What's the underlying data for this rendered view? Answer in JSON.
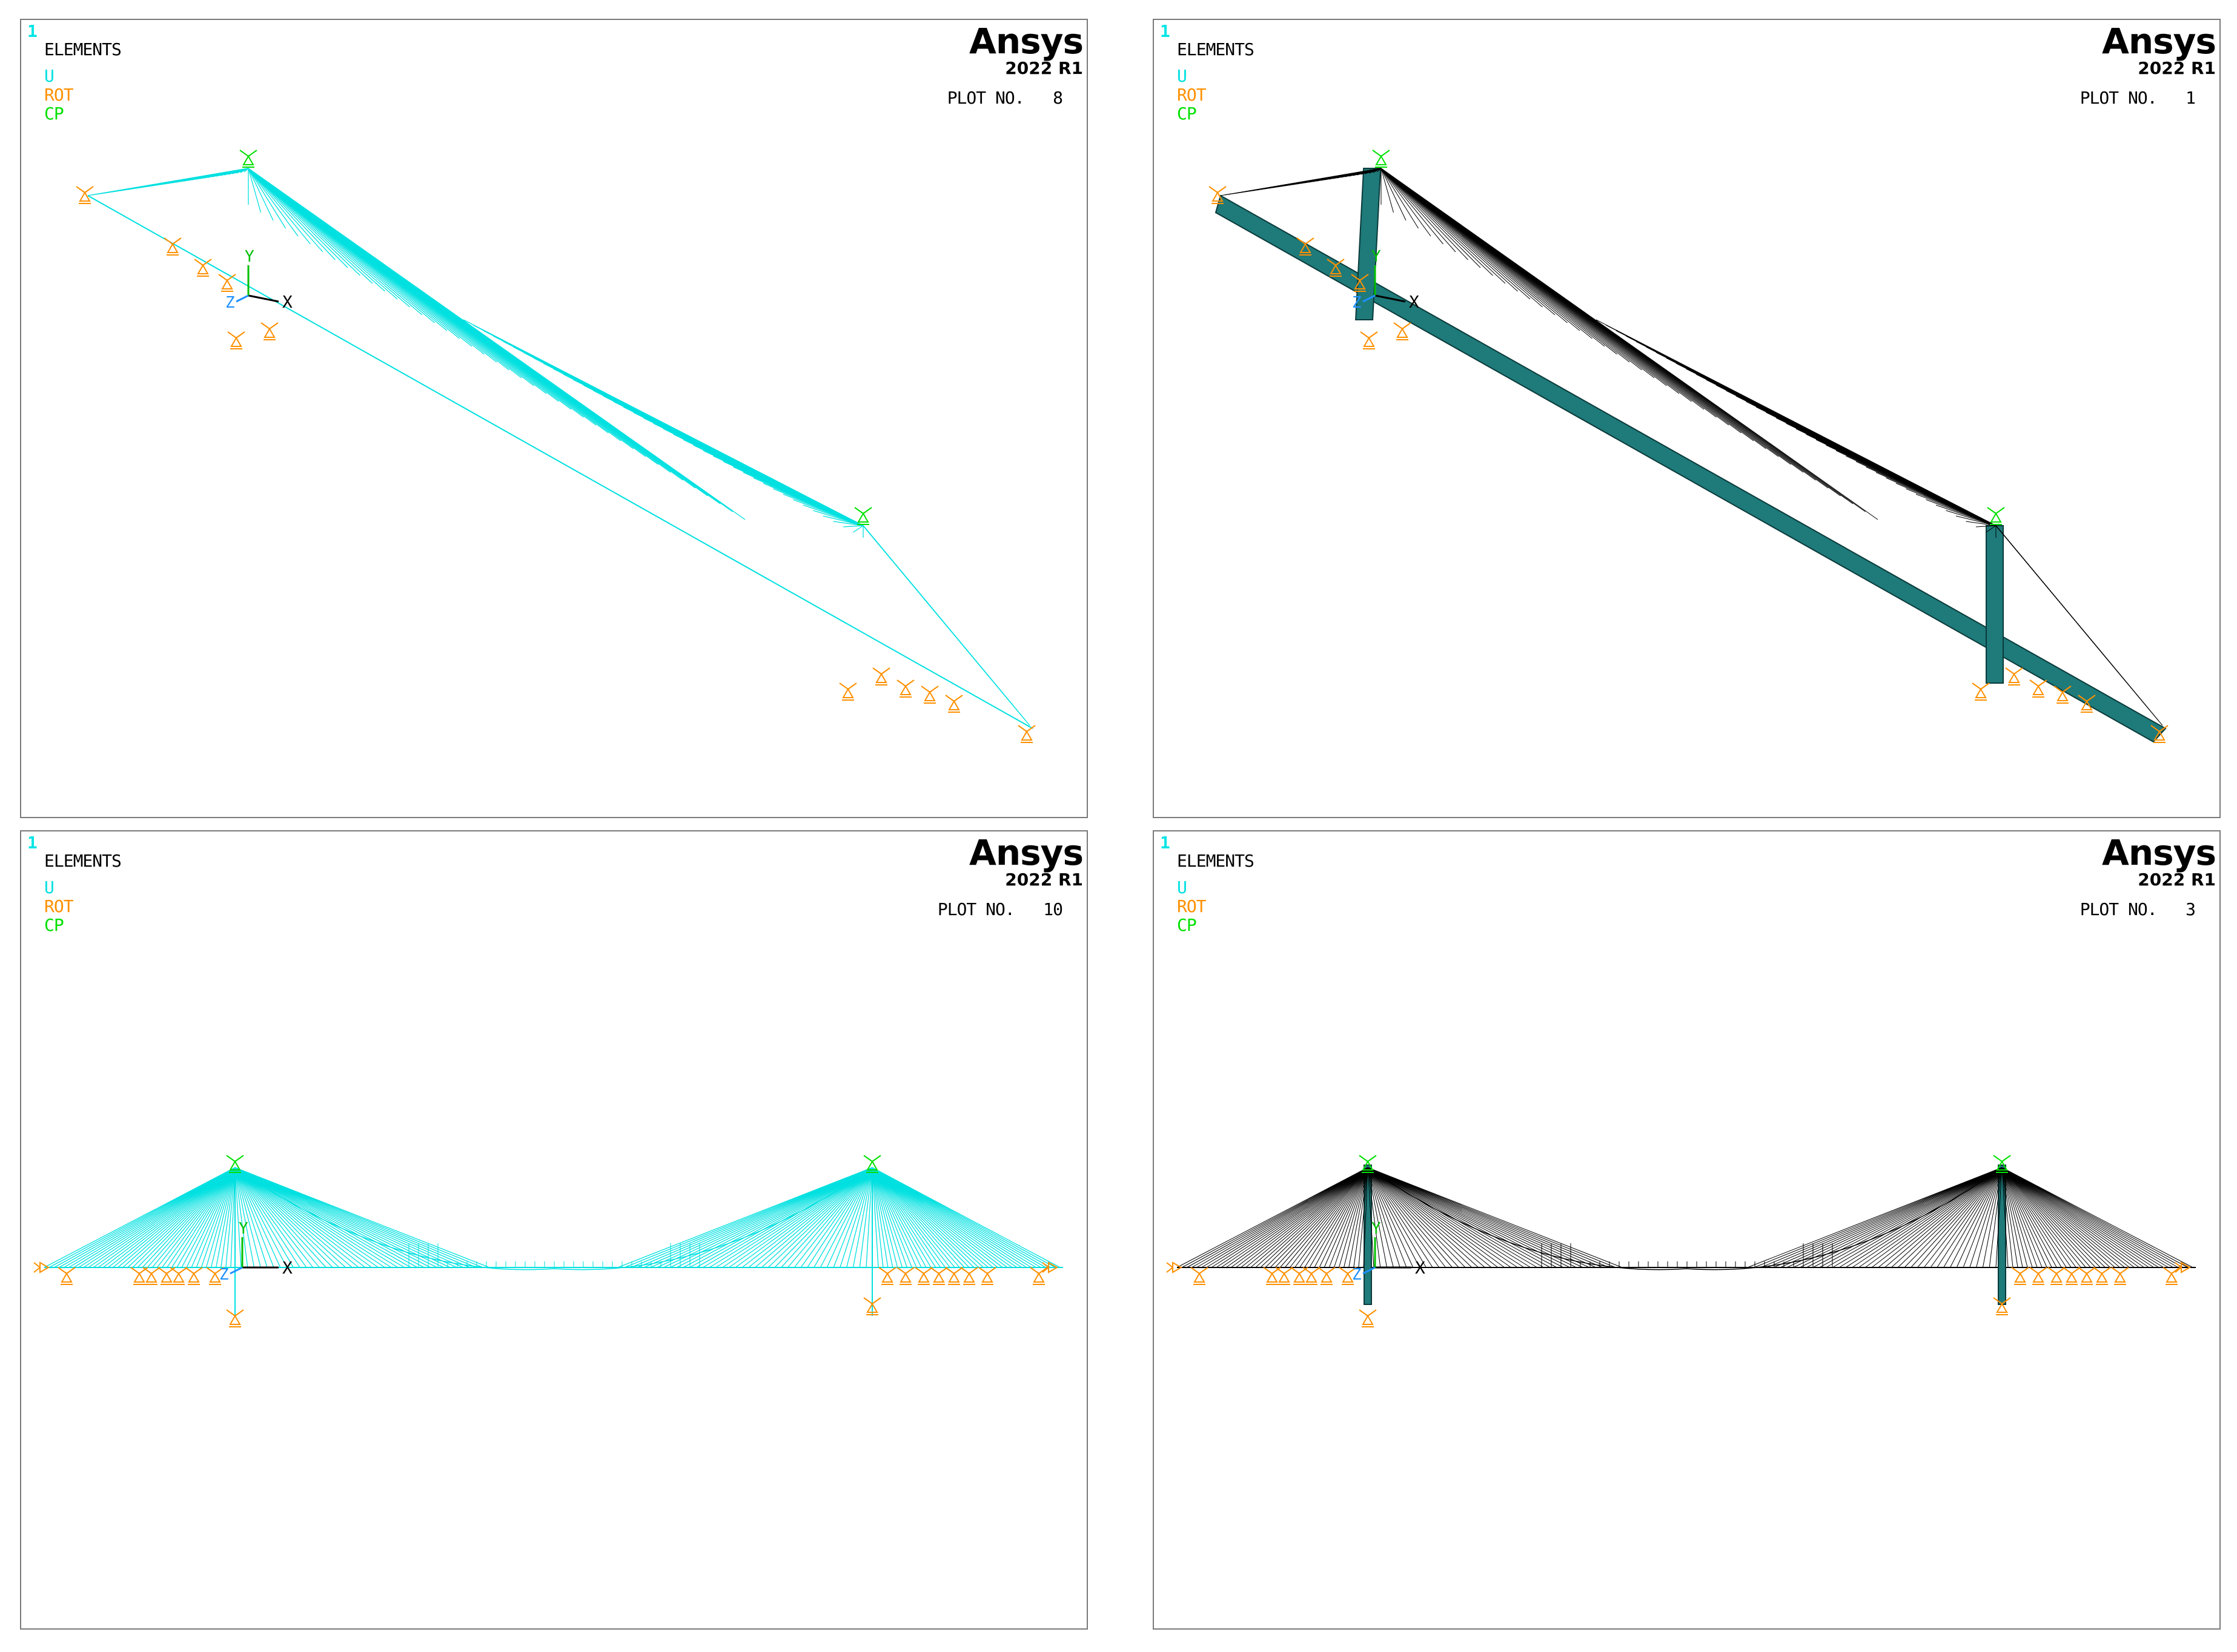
{
  "colors": {
    "u": "#00e0e0",
    "rot": "#ff9000",
    "cp": "#00e000",
    "border": "#7a7a7a",
    "shell": "#1f7a7a"
  },
  "panels": [
    {
      "window_number": "1",
      "entity_label": "ELEMENTS",
      "legend": {
        "u": "U",
        "rot": "ROT",
        "cp": "CP"
      },
      "logo": {
        "word": "Ansys",
        "release": "2022 R1"
      },
      "plot_label": "PLOT NO.",
      "plot_number": "8",
      "triad": {
        "x": "X",
        "y": "Y",
        "z": "Z"
      },
      "style": "line-elements"
    },
    {
      "window_number": "1",
      "entity_label": "ELEMENTS",
      "legend": {
        "u": "U",
        "rot": "ROT",
        "cp": "CP"
      },
      "logo": {
        "word": "Ansys",
        "release": "2022 R1"
      },
      "plot_label": "PLOT NO.",
      "plot_number": "1",
      "triad": {
        "x": "X",
        "y": "Y",
        "z": "Z"
      },
      "style": "solid-shell"
    },
    {
      "window_number": "1",
      "entity_label": "ELEMENTS",
      "legend": {
        "u": "U",
        "rot": "ROT",
        "cp": "CP"
      },
      "logo": {
        "word": "Ansys",
        "release": "2022 R1"
      },
      "plot_label": "PLOT NO.",
      "plot_number": "10",
      "triad": {
        "x": "X",
        "y": "Y",
        "z": "Z"
      },
      "style": "line-elements"
    },
    {
      "window_number": "1",
      "entity_label": "ELEMENTS",
      "legend": {
        "u": "U",
        "rot": "ROT",
        "cp": "CP"
      },
      "logo": {
        "word": "Ansys",
        "release": "2022 R1"
      },
      "plot_label": "PLOT NO.",
      "plot_number": "3",
      "triad": {
        "x": "X",
        "y": "Y",
        "z": "Z"
      },
      "style": "solid-shell"
    }
  ]
}
